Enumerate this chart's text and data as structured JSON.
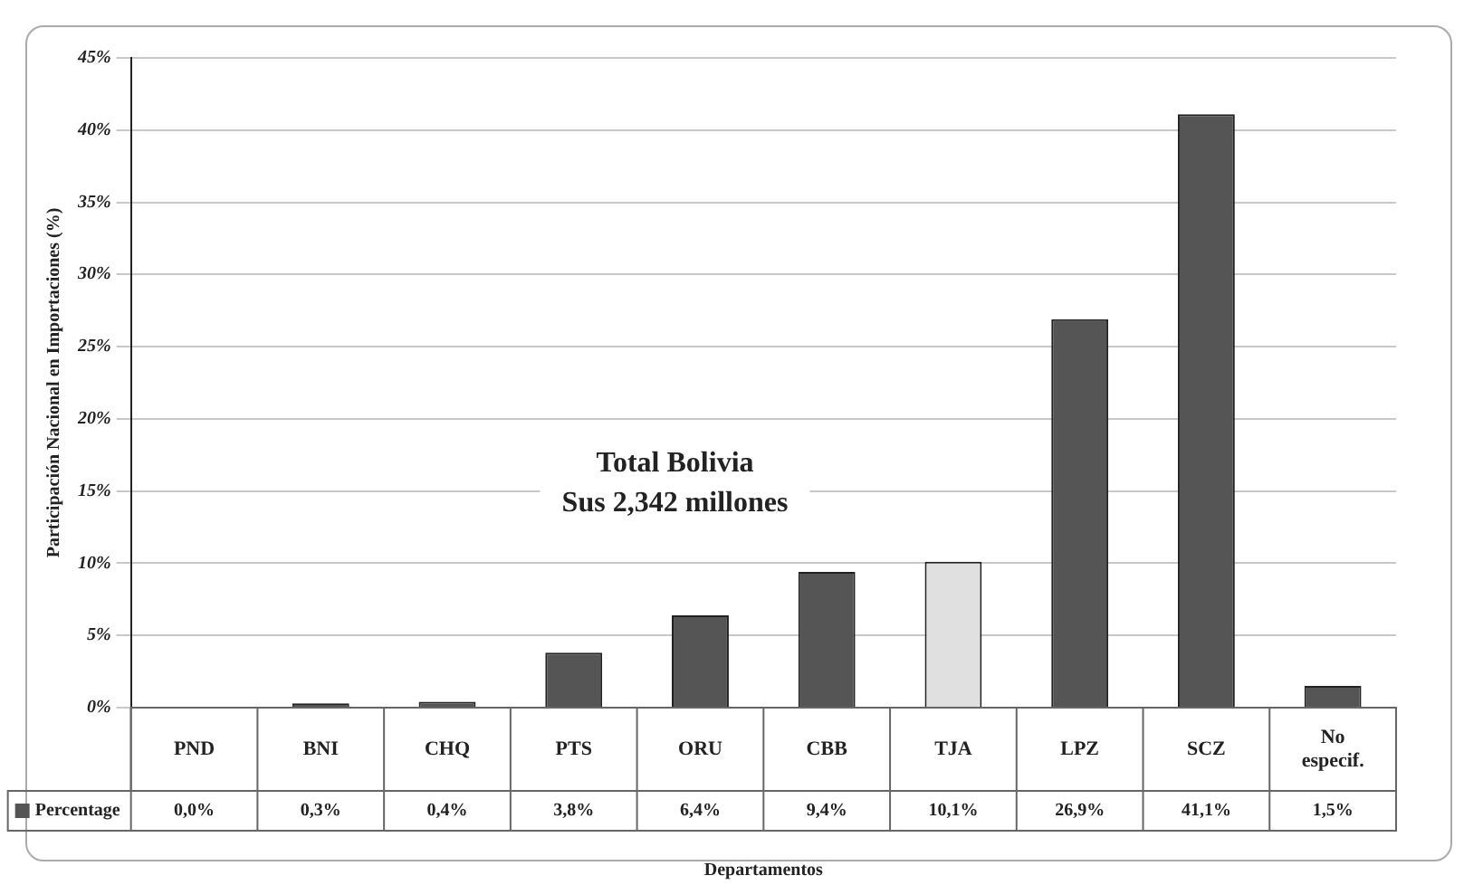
{
  "chart_data": {
    "type": "bar",
    "ylabel": "Participación Nacional en Importaciones (%)",
    "xlabel": "Departamentos",
    "categories": [
      "PND",
      "BNI",
      "CHQ",
      "PTS",
      "ORU",
      "CBB",
      "TJA",
      "LPZ",
      "SCZ",
      "No especif."
    ],
    "series": [
      {
        "name": "Percentage",
        "color": "#555555",
        "colors": [
          "#555555",
          "#555555",
          "#555555",
          "#555555",
          "#555555",
          "#555555",
          "#e0e0e0",
          "#555555",
          "#555555",
          "#555555"
        ],
        "values": [
          0.0,
          0.3,
          0.4,
          3.8,
          6.4,
          9.4,
          10.1,
          26.9,
          41.1,
          1.5
        ],
        "value_labels": [
          "0,0%",
          "0,3%",
          "0,4%",
          "3,8%",
          "6,4%",
          "9,4%",
          "10,1%",
          "26,9%",
          "41,1%",
          "1,5%"
        ]
      }
    ],
    "ylim": [
      0,
      45
    ],
    "yticks": [
      {
        "value": 0,
        "label": "0%"
      },
      {
        "value": 5,
        "label": "5%"
      },
      {
        "value": 10,
        "label": "10%"
      },
      {
        "value": 15,
        "label": "15%"
      },
      {
        "value": 20,
        "label": "20%"
      },
      {
        "value": 25,
        "label": "25%"
      },
      {
        "value": 30,
        "label": "30%"
      },
      {
        "value": 35,
        "label": "35%"
      },
      {
        "value": 40,
        "label": "40%"
      },
      {
        "value": 45,
        "label": "45%"
      }
    ],
    "grid": "y",
    "legend": "bottom",
    "annotations": [
      "Total Bolivia",
      "Sus 2,342 millones"
    ]
  }
}
